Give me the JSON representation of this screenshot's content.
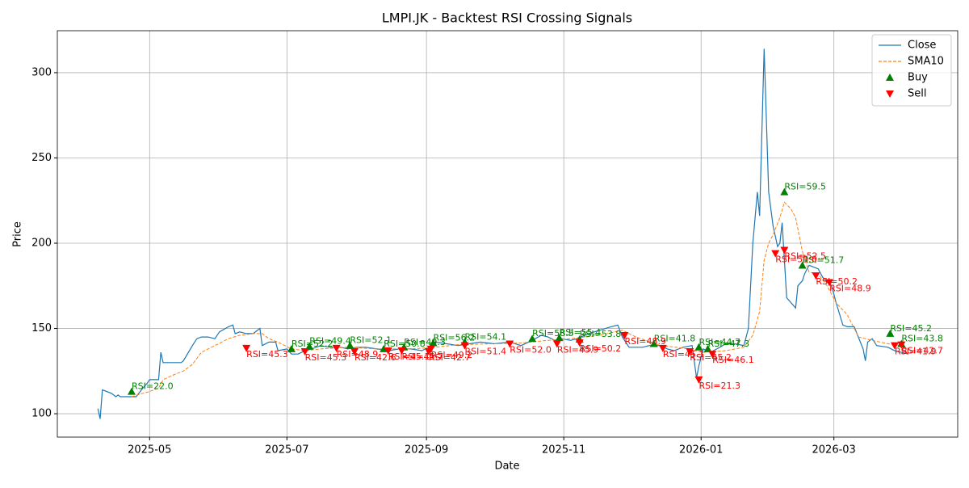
{
  "chart_data": {
    "type": "line",
    "title": "LMPI.JK - Backtest RSI Crossing Signals",
    "x_label": "Date",
    "y_label": "Price",
    "xlim": [
      "2025-03-21",
      "2026-04-25"
    ],
    "xticks": [
      {
        "value": "2025-05-01",
        "label": "2025-05"
      },
      {
        "value": "2025-07-01",
        "label": "2025-07"
      },
      {
        "value": "2025-09-01",
        "label": "2025-09"
      },
      {
        "value": "2025-11-01",
        "label": "2025-11"
      },
      {
        "value": "2026-01-01",
        "label": "2026-01"
      },
      {
        "value": "2026-03-01",
        "label": "2026-03"
      }
    ],
    "ylim": [
      86.3,
      324.6
    ],
    "yticks": [
      100,
      150,
      200,
      250,
      300
    ],
    "grid": true,
    "legend": "upper right",
    "series": [
      {
        "name": "Close",
        "type": "line",
        "color": "#1f77b4",
        "linestyle": "solid",
        "x": [
          "2025-04-08",
          "2025-04-09",
          "2025-04-10",
          "2025-04-14",
          "2025-04-16",
          "2025-04-17",
          "2025-04-18",
          "2025-04-22",
          "2025-04-25",
          "2025-04-28",
          "2025-04-30",
          "2025-05-01",
          "2025-05-05",
          "2025-05-06",
          "2025-05-07",
          "2025-05-12",
          "2025-05-15",
          "2025-05-16",
          "2025-05-20",
          "2025-05-22",
          "2025-05-24",
          "2025-05-27",
          "2025-05-30",
          "2025-06-01",
          "2025-06-05",
          "2025-06-07",
          "2025-06-08",
          "2025-06-10",
          "2025-06-13",
          "2025-06-16",
          "2025-06-19",
          "2025-06-20",
          "2025-06-23",
          "2025-06-26",
          "2025-06-27",
          "2025-07-01",
          "2025-07-03",
          "2025-07-06",
          "2025-07-09",
          "2025-07-12",
          "2025-07-16",
          "2025-07-20",
          "2025-07-25",
          "2025-07-28",
          "2025-08-01",
          "2025-08-05",
          "2025-08-10",
          "2025-08-15",
          "2025-08-20",
          "2025-08-25",
          "2025-08-30",
          "2025-09-02",
          "2025-09-05",
          "2025-09-10",
          "2025-09-15",
          "2025-09-20",
          "2025-09-25",
          "2025-10-01",
          "2025-10-08",
          "2025-10-13",
          "2025-10-18",
          "2025-10-22",
          "2025-10-25",
          "2025-10-28",
          "2025-10-31",
          "2025-11-04",
          "2025-11-07",
          "2025-11-12",
          "2025-11-17",
          "2025-11-22",
          "2025-11-25",
          "2025-11-27",
          "2025-11-30",
          "2025-12-03",
          "2025-12-06",
          "2025-12-09",
          "2025-12-14",
          "2025-12-17",
          "2025-12-20",
          "2025-12-24",
          "2025-12-28",
          "2025-12-30",
          "2025-12-31",
          "2026-01-02",
          "2026-01-05",
          "2026-01-08",
          "2026-01-12",
          "2026-01-16",
          "2026-01-20",
          "2026-01-22",
          "2026-01-24",
          "2026-01-26",
          "2026-01-27",
          "2026-01-29",
          "2026-01-31",
          "2026-02-02",
          "2026-02-04",
          "2026-02-05",
          "2026-02-06",
          "2026-02-08",
          "2026-02-12",
          "2026-02-13",
          "2026-02-15",
          "2026-02-16",
          "2026-02-18",
          "2026-02-22",
          "2026-02-24",
          "2026-02-28",
          "2026-03-02",
          "2026-03-05",
          "2026-03-07",
          "2026-03-10",
          "2026-03-14",
          "2026-03-15",
          "2026-03-16",
          "2026-03-18",
          "2026-03-20",
          "2026-03-25",
          "2026-03-28",
          "2026-03-31",
          "2026-04-03"
        ],
        "values": [
          103,
          97,
          114,
          112,
          110,
          111,
          110,
          110,
          110,
          115,
          118,
          120,
          120,
          136,
          130,
          130,
          130,
          131,
          140,
          144,
          145,
          145,
          144,
          148,
          151,
          152,
          147,
          148,
          147,
          147,
          150,
          140,
          142,
          142,
          137,
          138,
          135,
          135,
          137,
          138,
          140,
          139,
          139,
          138,
          139,
          139,
          138,
          137,
          138,
          138,
          137,
          139,
          142,
          141,
          140,
          141,
          142,
          141,
          142,
          140,
          143,
          146,
          145,
          143,
          144,
          143,
          144,
          147,
          149,
          151,
          152,
          145,
          139,
          139,
          139,
          140,
          140,
          138,
          137,
          139,
          140,
          121,
          128,
          138,
          136,
          138,
          141,
          141,
          140,
          150,
          200,
          230,
          216,
          314,
          230,
          210,
          198,
          200,
          212,
          168,
          162,
          175,
          178,
          182,
          187,
          185,
          180,
          175,
          165,
          152,
          151,
          151,
          138,
          131,
          142,
          144,
          140,
          139,
          137,
          136,
          135
        ]
      },
      {
        "name": "SMA10",
        "type": "line",
        "color": "#ff7f0e",
        "linestyle": "dashed",
        "x": [
          "2025-04-23",
          "2025-04-28",
          "2025-05-01",
          "2025-05-05",
          "2025-05-07",
          "2025-05-12",
          "2025-05-16",
          "2025-05-20",
          "2025-05-24",
          "2025-05-30",
          "2025-06-05",
          "2025-06-10",
          "2025-06-16",
          "2025-06-20",
          "2025-06-23",
          "2025-06-27",
          "2025-07-03",
          "2025-07-09",
          "2025-07-16",
          "2025-07-28",
          "2025-08-10",
          "2025-08-25",
          "2025-09-05",
          "2025-09-15",
          "2025-10-01",
          "2025-10-13",
          "2025-10-25",
          "2025-11-04",
          "2025-11-17",
          "2025-11-27",
          "2025-12-03",
          "2025-12-14",
          "2025-12-24",
          "2026-01-02",
          "2026-01-12",
          "2026-01-20",
          "2026-01-24",
          "2026-01-27",
          "2026-01-29",
          "2026-01-31",
          "2026-02-02",
          "2026-02-05",
          "2026-02-07",
          "2026-02-10",
          "2026-02-12",
          "2026-02-15",
          "2026-02-18",
          "2026-02-22",
          "2026-02-26",
          "2026-03-02",
          "2026-03-07",
          "2026-03-12",
          "2026-03-18",
          "2026-03-25",
          "2026-03-31"
        ],
        "values": [
          110,
          112,
          113,
          115,
          120,
          123,
          125,
          129,
          136,
          140,
          144,
          146,
          147,
          147,
          144,
          142,
          138,
          137,
          138,
          139,
          138,
          138,
          139,
          140.5,
          141,
          141.5,
          143,
          144,
          146,
          149,
          145,
          140,
          138.5,
          136,
          137,
          139,
          146,
          160,
          190,
          200,
          205,
          215,
          224,
          220,
          215,
          195,
          183,
          182,
          175,
          165,
          158,
          145,
          143,
          141,
          140
        ]
      },
      {
        "name": "Buy",
        "type": "scatter",
        "marker": "triangle-up",
        "color": "#008000",
        "x": [
          "2025-04-23",
          "2025-07-03",
          "2025-07-11",
          "2025-07-29",
          "2025-08-13",
          "2025-08-22",
          "2025-09-04",
          "2025-09-18",
          "2025-10-18",
          "2025-10-30",
          "2025-11-08",
          "2025-12-11",
          "2025-12-31",
          "2026-01-04",
          "2026-02-07",
          "2026-02-15",
          "2026-03-26",
          "2026-03-31"
        ],
        "values": [
          113,
          138,
          139.5,
          140,
          138,
          139,
          141.5,
          142,
          144,
          144.5,
          143.6,
          141,
          139,
          138,
          230,
          187,
          147,
          141
        ],
        "labels": [
          "RSI=22.0",
          "RSI=52.2",
          "RSI=49.4",
          "RSI=52.1",
          "RSI=50.8",
          "RSI=49.3",
          "RSI=56.2",
          "RSI=54.1",
          "RSI=58.5",
          "RSI=55.4",
          "RSI=53.8",
          "RSI=41.8",
          "RSI=44.7",
          "RSI=47.3",
          "RSI=59.5",
          "RSI=51.7",
          "RSI=45.2",
          "RSI=43.8"
        ]
      },
      {
        "name": "Sell",
        "type": "scatter",
        "marker": "triangle-down",
        "color": "#ff0000",
        "x": [
          "2025-06-13",
          "2025-07-09",
          "2025-07-23",
          "2025-07-31",
          "2025-08-15",
          "2025-08-21",
          "2025-09-02",
          "2025-09-03",
          "2025-09-18",
          "2025-10-08",
          "2025-10-29",
          "2025-11-08",
          "2025-11-28",
          "2025-12-15",
          "2025-12-27",
          "2025-12-31",
          "2026-01-06",
          "2026-02-03",
          "2026-02-07",
          "2026-02-21",
          "2026-02-27",
          "2026-03-28",
          "2026-03-31"
        ],
        "values": [
          138.5,
          136.5,
          138.5,
          136.5,
          137,
          137,
          136.5,
          138,
          140,
          141,
          141,
          141.7,
          146,
          138.5,
          136.5,
          120,
          135,
          194,
          196,
          181,
          177,
          140,
          140.5
        ],
        "labels": [
          "RSI=45.3",
          "RSI=45.3",
          "RSI=48.9",
          "RSI=42.6",
          "RSI=45.1",
          "RSI=45.7",
          "RSI=42.7",
          "RSI=49.2",
          "RSI=51.4",
          "RSI=52.0",
          "RSI=45.9",
          "RSI=50.2",
          "RSI=48.9",
          "RSI=45.1",
          "RSI=45.2",
          "RSI=21.3",
          "RSI=46.1",
          "RSI=53.0",
          "RSI=52.5",
          "RSI=50.2",
          "RSI=48.9",
          "RSI=41.9",
          "RSI=42.7"
        ]
      }
    ]
  }
}
